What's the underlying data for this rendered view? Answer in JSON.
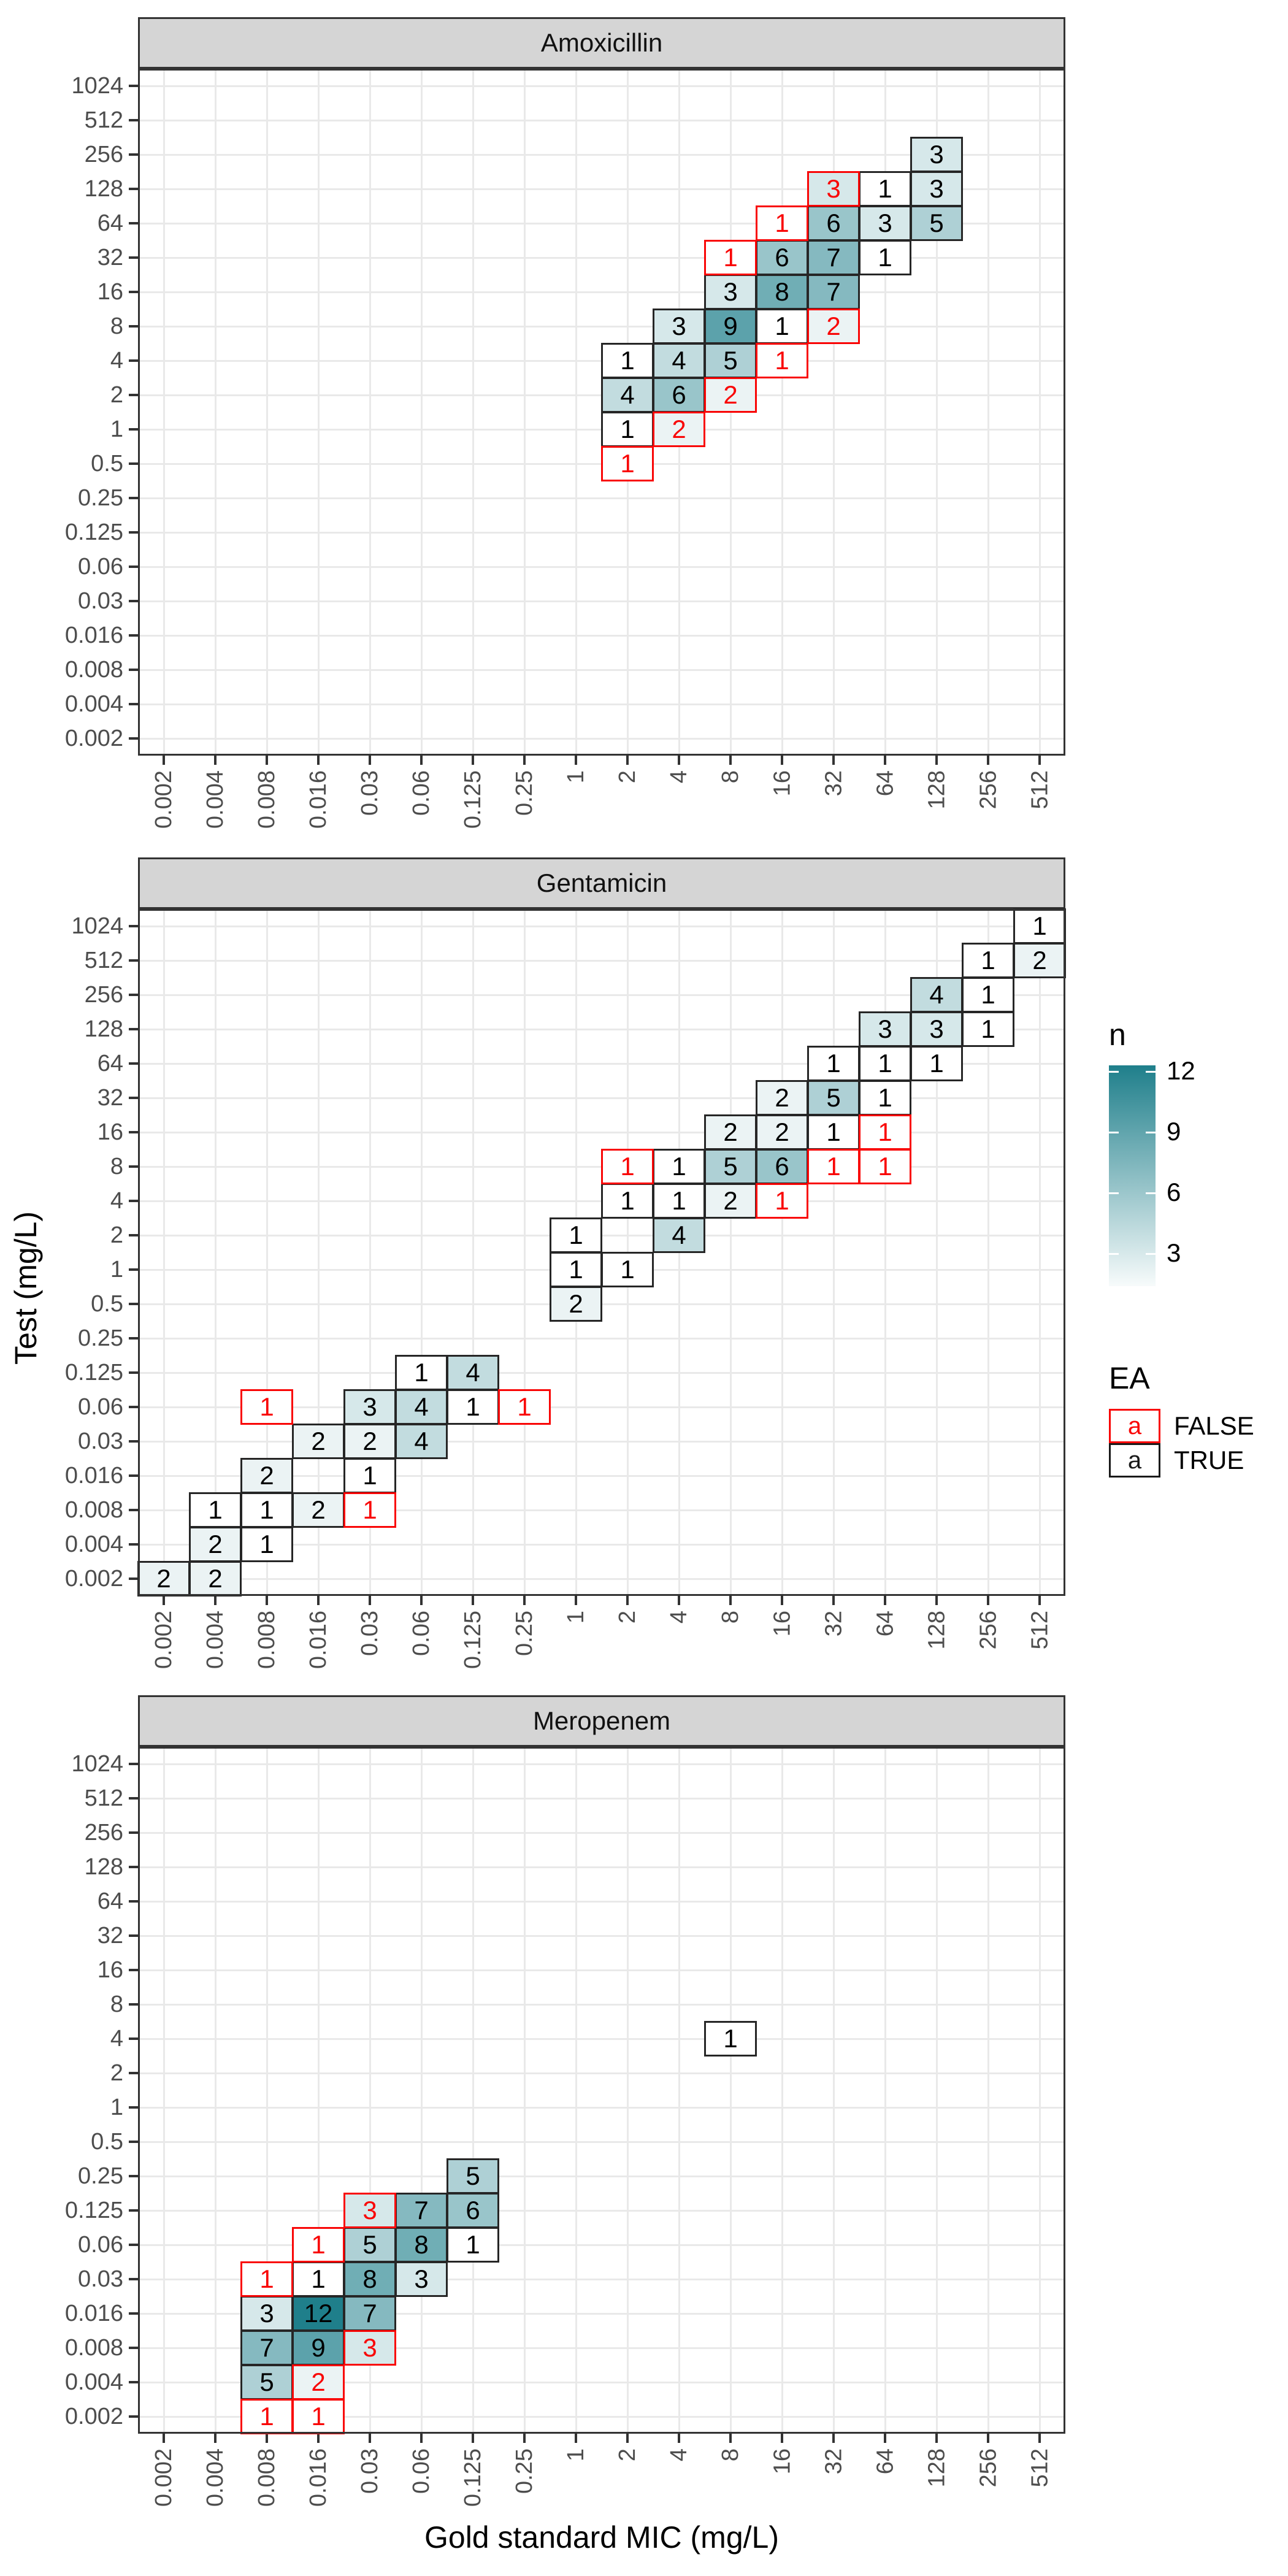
{
  "figure": {
    "x_axis_title": "Gold standard MIC (mg/L)",
    "y_axis_title": "Test (mg/L)",
    "x_categories": [
      "0.002",
      "0.004",
      "0.008",
      "0.016",
      "0.03",
      "0.06",
      "0.125",
      "0.25",
      "1",
      "2",
      "4",
      "8",
      "16",
      "32",
      "64",
      "128",
      "256",
      "512"
    ],
    "y_categories_bottom_up": [
      "0.002",
      "0.004",
      "0.008",
      "0.016",
      "0.03",
      "0.06",
      "0.125",
      "0.25",
      "0.5",
      "1",
      "2",
      "4",
      "8",
      "16",
      "32",
      "64",
      "128",
      "256",
      "512",
      "1024"
    ]
  },
  "legend": {
    "n": {
      "title": "n",
      "ticks": [
        "12",
        "9",
        "6",
        "3"
      ],
      "min": 1,
      "max": 12
    },
    "ea": {
      "title": "EA",
      "items": [
        {
          "glyph": "a",
          "label": "FALSE",
          "color": "#f90606"
        },
        {
          "glyph": "a",
          "label": "TRUE",
          "color": "#1a1a1a"
        }
      ]
    }
  },
  "colors": {
    "tile_high": "#1f7f8b",
    "tile_low": "#ffffff",
    "ea_false_red": "#f90606",
    "ea_true_border": "#262626",
    "strip_bg": "#d5d5d5",
    "grid": "#e9e9e9",
    "panel_border": "#333333",
    "axis_text": "#4d4d4d"
  },
  "chart_data": [
    {
      "type": "heatmap",
      "title": "Amoxicillin",
      "xlabel": "Gold standard MIC (mg/L)",
      "ylabel": "Test (mg/L)",
      "tile_columns": [
        "gold_standard_mic",
        "test_mic",
        "n",
        "ea_true"
      ],
      "tiles": [
        [
          "2",
          "0.5",
          1,
          false
        ],
        [
          "2",
          "1",
          1,
          true
        ],
        [
          "4",
          "1",
          2,
          false
        ],
        [
          "2",
          "2",
          4,
          true
        ],
        [
          "4",
          "2",
          6,
          true
        ],
        [
          "8",
          "2",
          2,
          false
        ],
        [
          "2",
          "4",
          1,
          true
        ],
        [
          "4",
          "4",
          4,
          true
        ],
        [
          "8",
          "4",
          5,
          true
        ],
        [
          "16",
          "4",
          1,
          false
        ],
        [
          "4",
          "8",
          3,
          true
        ],
        [
          "8",
          "8",
          9,
          true
        ],
        [
          "16",
          "8",
          1,
          true
        ],
        [
          "32",
          "8",
          2,
          false
        ],
        [
          "8",
          "16",
          3,
          true
        ],
        [
          "16",
          "16",
          8,
          true
        ],
        [
          "32",
          "16",
          7,
          true
        ],
        [
          "8",
          "32",
          1,
          false
        ],
        [
          "16",
          "32",
          6,
          true
        ],
        [
          "32",
          "32",
          7,
          true
        ],
        [
          "64",
          "32",
          1,
          true
        ],
        [
          "16",
          "64",
          1,
          false
        ],
        [
          "32",
          "64",
          6,
          true
        ],
        [
          "64",
          "64",
          3,
          true
        ],
        [
          "128",
          "64",
          5,
          true
        ],
        [
          "32",
          "128",
          3,
          false
        ],
        [
          "64",
          "128",
          1,
          true
        ],
        [
          "128",
          "128",
          3,
          true
        ],
        [
          "128",
          "256",
          3,
          true
        ]
      ]
    },
    {
      "type": "heatmap",
      "title": "Gentamicin",
      "xlabel": "Gold standard MIC (mg/L)",
      "ylabel": "Test (mg/L)",
      "tile_columns": [
        "gold_standard_mic",
        "test_mic",
        "n",
        "ea_true"
      ],
      "tiles": [
        [
          "0.002",
          "0.002",
          2,
          true
        ],
        [
          "0.004",
          "0.002",
          2,
          true
        ],
        [
          "0.004",
          "0.004",
          2,
          true
        ],
        [
          "0.008",
          "0.004",
          1,
          true
        ],
        [
          "0.004",
          "0.008",
          1,
          true
        ],
        [
          "0.008",
          "0.008",
          1,
          true
        ],
        [
          "0.016",
          "0.008",
          2,
          true
        ],
        [
          "0.03",
          "0.008",
          1,
          false
        ],
        [
          "0.008",
          "0.016",
          2,
          true
        ],
        [
          "0.03",
          "0.016",
          1,
          true
        ],
        [
          "0.016",
          "0.03",
          2,
          true
        ],
        [
          "0.03",
          "0.03",
          2,
          true
        ],
        [
          "0.06",
          "0.03",
          4,
          true
        ],
        [
          "0.008",
          "0.06",
          1,
          false
        ],
        [
          "0.03",
          "0.06",
          3,
          true
        ],
        [
          "0.06",
          "0.06",
          4,
          true
        ],
        [
          "0.125",
          "0.06",
          1,
          true
        ],
        [
          "0.25",
          "0.06",
          1,
          false
        ],
        [
          "0.06",
          "0.125",
          1,
          true
        ],
        [
          "0.125",
          "0.125",
          4,
          true
        ],
        [
          "1",
          "0.5",
          2,
          true
        ],
        [
          "1",
          "1",
          1,
          true
        ],
        [
          "2",
          "1",
          1,
          true
        ],
        [
          "1",
          "2",
          1,
          true
        ],
        [
          "4",
          "2",
          4,
          true
        ],
        [
          "2",
          "4",
          1,
          true
        ],
        [
          "4",
          "4",
          1,
          true
        ],
        [
          "8",
          "4",
          2,
          true
        ],
        [
          "16",
          "4",
          1,
          false
        ],
        [
          "2",
          "8",
          1,
          false
        ],
        [
          "4",
          "8",
          1,
          true
        ],
        [
          "8",
          "8",
          5,
          true
        ],
        [
          "16",
          "8",
          6,
          true
        ],
        [
          "32",
          "8",
          1,
          false
        ],
        [
          "64",
          "8",
          1,
          false
        ],
        [
          "8",
          "16",
          2,
          true
        ],
        [
          "16",
          "16",
          2,
          true
        ],
        [
          "32",
          "16",
          1,
          true
        ],
        [
          "64",
          "16",
          1,
          false
        ],
        [
          "16",
          "32",
          2,
          true
        ],
        [
          "32",
          "32",
          5,
          true
        ],
        [
          "64",
          "32",
          1,
          true
        ],
        [
          "32",
          "64",
          1,
          true
        ],
        [
          "64",
          "64",
          1,
          true
        ],
        [
          "128",
          "64",
          1,
          true
        ],
        [
          "64",
          "128",
          3,
          true
        ],
        [
          "128",
          "128",
          3,
          true
        ],
        [
          "256",
          "128",
          1,
          true
        ],
        [
          "128",
          "256",
          4,
          true
        ],
        [
          "256",
          "256",
          1,
          true
        ],
        [
          "256",
          "512",
          1,
          true
        ],
        [
          "512",
          "512",
          2,
          true
        ],
        [
          "512",
          "1024",
          1,
          true
        ]
      ]
    },
    {
      "type": "heatmap",
      "title": "Meropenem",
      "xlabel": "Gold standard MIC (mg/L)",
      "ylabel": "Test (mg/L)",
      "tile_columns": [
        "gold_standard_mic",
        "test_mic",
        "n",
        "ea_true"
      ],
      "tiles": [
        [
          "0.008",
          "0.002",
          1,
          false
        ],
        [
          "0.016",
          "0.002",
          1,
          false
        ],
        [
          "0.008",
          "0.004",
          5,
          true
        ],
        [
          "0.016",
          "0.004",
          2,
          false
        ],
        [
          "0.008",
          "0.008",
          7,
          true
        ],
        [
          "0.016",
          "0.008",
          9,
          true
        ],
        [
          "0.03",
          "0.008",
          3,
          false
        ],
        [
          "0.008",
          "0.016",
          3,
          true
        ],
        [
          "0.016",
          "0.016",
          12,
          true
        ],
        [
          "0.03",
          "0.016",
          7,
          true
        ],
        [
          "0.008",
          "0.03",
          1,
          false
        ],
        [
          "0.016",
          "0.03",
          1,
          true
        ],
        [
          "0.03",
          "0.03",
          8,
          true
        ],
        [
          "0.06",
          "0.03",
          3,
          true
        ],
        [
          "0.016",
          "0.06",
          1,
          false
        ],
        [
          "0.03",
          "0.06",
          5,
          true
        ],
        [
          "0.06",
          "0.06",
          8,
          true
        ],
        [
          "0.125",
          "0.06",
          1,
          true
        ],
        [
          "0.03",
          "0.125",
          3,
          false
        ],
        [
          "0.06",
          "0.125",
          7,
          true
        ],
        [
          "0.125",
          "0.125",
          6,
          true
        ],
        [
          "0.125",
          "0.25",
          5,
          true
        ],
        [
          "8",
          "4",
          1,
          true
        ]
      ]
    }
  ]
}
